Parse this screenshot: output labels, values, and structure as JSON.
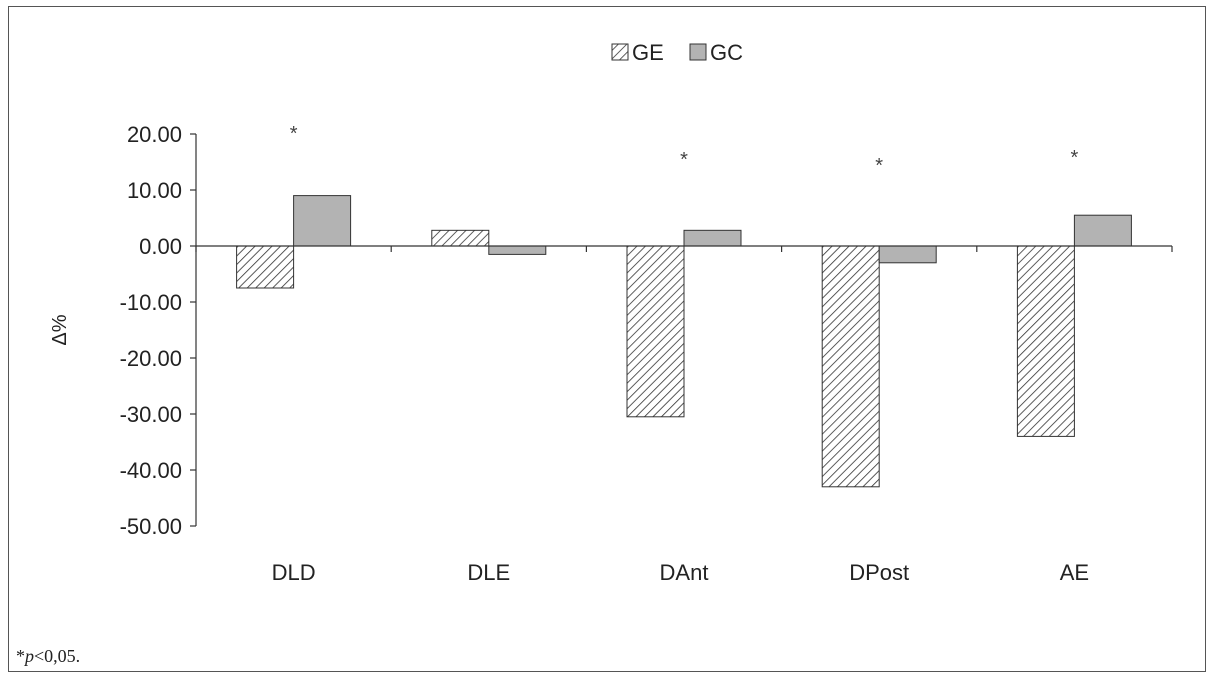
{
  "chart_data": {
    "type": "bar",
    "categories": [
      "DLD",
      "DLE",
      "DAnt",
      "DPost",
      "AE"
    ],
    "series": [
      {
        "name": "GE",
        "values": [
          -7.5,
          2.8,
          -30.5,
          -43.0,
          -34.0
        ],
        "pattern": "hatched"
      },
      {
        "name": "GC",
        "values": [
          9.0,
          -1.5,
          2.8,
          -3.0,
          5.5
        ],
        "color": "#b3b3b3"
      }
    ],
    "ylabel": "Δ%",
    "ylim": [
      -50,
      20
    ],
    "yticks": [
      "20.00",
      "10.00",
      "0.00",
      "-10.00",
      "-20.00",
      "-30.00",
      "-40.00",
      "-50.00"
    ],
    "significance_marks": [
      "*",
      "",
      "*",
      "*",
      "*"
    ],
    "legend": "top-center",
    "grid": false
  },
  "footnote": {
    "prefix": "*",
    "var": "p",
    "suffix": "<0,05."
  }
}
